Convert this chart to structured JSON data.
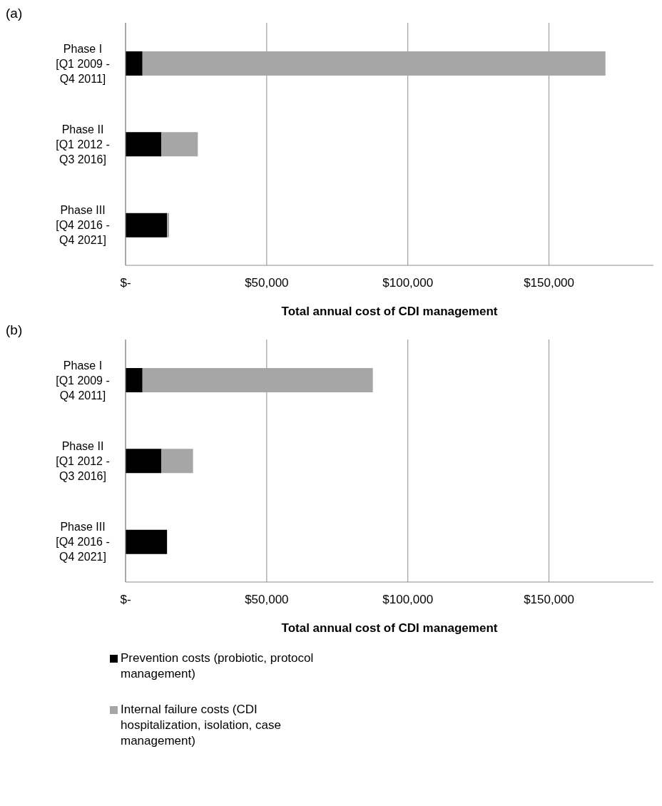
{
  "chart_data": [
    {
      "type": "bar",
      "orientation": "horizontal",
      "stacked": true,
      "title": "(a)",
      "xlabel": "Total annual cost of CDI management",
      "categories": [
        "Phase I [Q1 2009 - Q4 2011]",
        "Phase II [Q1 2012 - Q3 2016]",
        "Phase III [Q4 2016 - Q4 2021]"
      ],
      "series": [
        {
          "color": "#000000",
          "values": [
            6000,
            12700,
            14700
          ]
        },
        {
          "color": "#a6a6a6",
          "values": [
            164000,
            12900,
            700
          ]
        }
      ],
      "xlim": [
        0,
        187000
      ],
      "xticks": [
        {
          "value": 0,
          "label": "$-"
        },
        {
          "value": 50000,
          "label": "$50,000"
        },
        {
          "value": 100000,
          "label": "$100,000"
        },
        {
          "value": 150000,
          "label": "$150,000"
        }
      ],
      "grid": "x",
      "legend": false
    },
    {
      "type": "bar",
      "orientation": "horizontal",
      "stacked": true,
      "title": "(b)",
      "xlabel": "Total annual cost of CDI management",
      "categories": [
        "Phase I [Q1 2009 - Q4 2011]",
        "Phase II [Q1 2012 - Q3 2016]",
        "Phase III [Q4 2016 - Q4 2021]"
      ],
      "series": [
        {
          "name": "Prevention costs (probiotic, protocol management)",
          "color": "#000000",
          "values": [
            6000,
            12700,
            14700
          ]
        },
        {
          "name": "Internal failure costs (CDI hospitalization, isolation, case management)",
          "color": "#a6a6a6",
          "values": [
            81600,
            11200,
            0
          ]
        }
      ],
      "xlim": [
        0,
        187000
      ],
      "xticks": [
        {
          "value": 0,
          "label": "$-"
        },
        {
          "value": 50000,
          "label": "$50,000"
        },
        {
          "value": 100000,
          "label": "$100,000"
        },
        {
          "value": 150000,
          "label": "$150,000"
        }
      ],
      "grid": "x",
      "legend": "bottom"
    }
  ]
}
